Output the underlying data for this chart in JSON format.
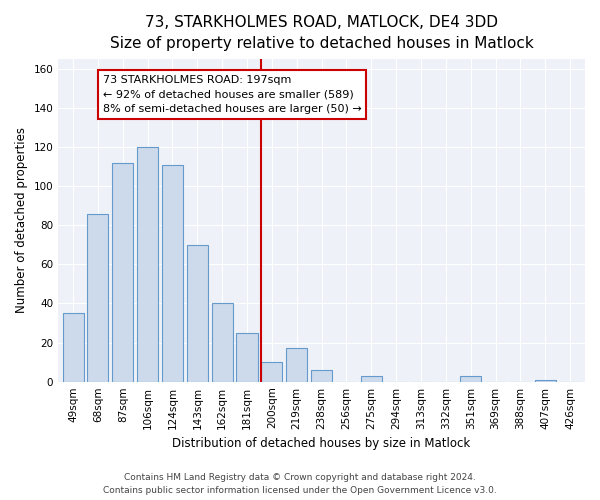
{
  "title": "73, STARKHOLMES ROAD, MATLOCK, DE4 3DD",
  "subtitle": "Size of property relative to detached houses in Matlock",
  "xlabel": "Distribution of detached houses by size in Matlock",
  "ylabel": "Number of detached properties",
  "bar_labels": [
    "49sqm",
    "68sqm",
    "87sqm",
    "106sqm",
    "124sqm",
    "143sqm",
    "162sqm",
    "181sqm",
    "200sqm",
    "219sqm",
    "238sqm",
    "256sqm",
    "275sqm",
    "294sqm",
    "313sqm",
    "332sqm",
    "351sqm",
    "369sqm",
    "388sqm",
    "407sqm",
    "426sqm"
  ],
  "bar_values": [
    35,
    86,
    112,
    120,
    111,
    70,
    40,
    25,
    10,
    17,
    6,
    0,
    3,
    0,
    0,
    0,
    3,
    0,
    0,
    1,
    0
  ],
  "bar_color": "#ccdaec",
  "bar_edge_color": "#6699cc",
  "marker_index": 8,
  "marker_color": "#cc0000",
  "annotation_title": "73 STARKHOLMES ROAD: 197sqm",
  "annotation_line1": "← 92% of detached houses are smaller (589)",
  "annotation_line2": "8% of semi-detached houses are larger (50) →",
  "annotation_box_edge": "#cc0000",
  "ylim": [
    0,
    165
  ],
  "yticks": [
    0,
    20,
    40,
    60,
    80,
    100,
    120,
    140,
    160
  ],
  "footer1": "Contains HM Land Registry data © Crown copyright and database right 2024.",
  "footer2": "Contains public sector information licensed under the Open Government Licence v3.0.",
  "bg_color": "#eef2f8",
  "grid_color": "#ffffff",
  "title_fontsize": 11,
  "subtitle_fontsize": 9.5,
  "axis_label_fontsize": 8.5,
  "tick_fontsize": 7.5,
  "footer_fontsize": 6.5,
  "annotation_fontsize": 8
}
